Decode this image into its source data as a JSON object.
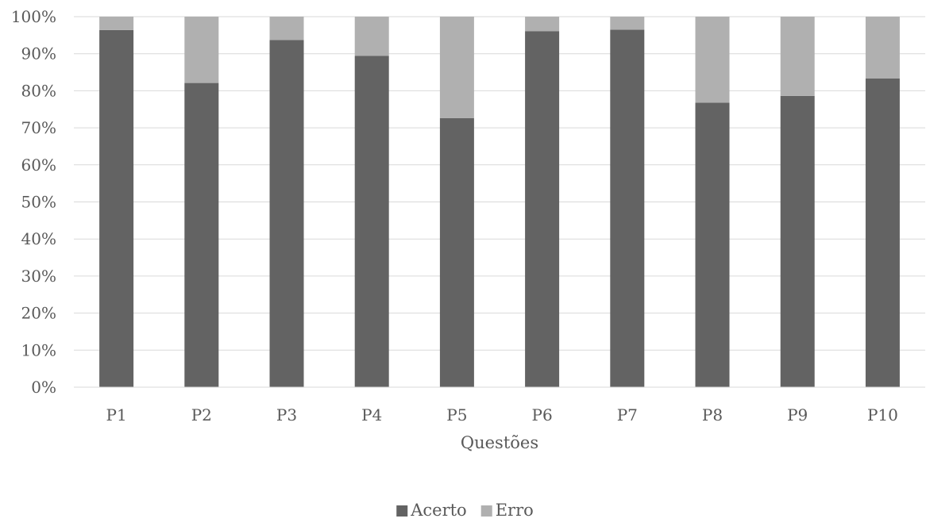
{
  "chart_data": {
    "type": "bar",
    "stacked": true,
    "percent_stacked": true,
    "title": "",
    "xlabel": "Questões",
    "ylabel": "",
    "ylim": [
      0,
      100
    ],
    "yticks": [
      "0%",
      "10%",
      "20%",
      "30%",
      "40%",
      "50%",
      "60%",
      "70%",
      "80%",
      "90%",
      "100%"
    ],
    "categories": [
      "P1",
      "P2",
      "P3",
      "P4",
      "P5",
      "P6",
      "P7",
      "P8",
      "P9",
      "P10"
    ],
    "series": [
      {
        "name": "Acerto",
        "values": [
          96.4,
          82.1,
          93.7,
          89.4,
          72.6,
          96.1,
          96.5,
          76.8,
          78.6,
          83.3
        ],
        "color": "#636363"
      },
      {
        "name": "Erro",
        "values": [
          3.6,
          17.9,
          6.3,
          10.6,
          27.4,
          3.9,
          3.5,
          23.2,
          21.4,
          16.7
        ],
        "color": "#b0b0b0"
      }
    ],
    "grid": true,
    "legend_position": "bottom"
  }
}
